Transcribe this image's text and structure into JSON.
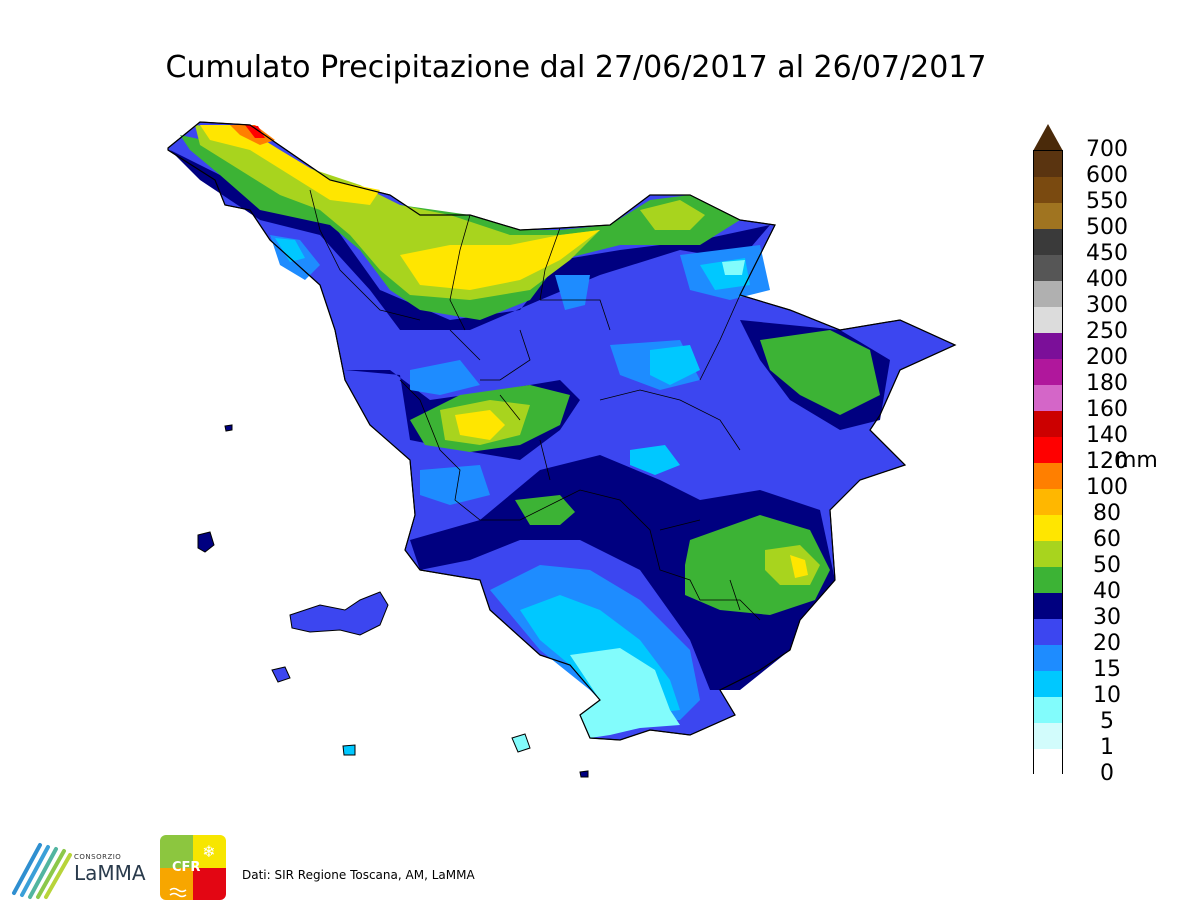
{
  "title": "Cumulato Precipitazione dal 27/06/2017 al 26/07/2017",
  "legend": {
    "unit": "mm",
    "levels": [
      {
        "label": "700",
        "color": "#5a3410"
      },
      {
        "label": "600",
        "color": "#7a4a10"
      },
      {
        "label": "550",
        "color": "#a07420"
      },
      {
        "label": "500",
        "color": "#3a3a3a"
      },
      {
        "label": "450",
        "color": "#565656"
      },
      {
        "label": "400",
        "color": "#b0b0b0"
      },
      {
        "label": "300",
        "color": "#dcdcdc"
      },
      {
        "label": "250",
        "color": "#7b0f99"
      },
      {
        "label": "200",
        "color": "#b0179c"
      },
      {
        "label": "180",
        "color": "#d466c8"
      },
      {
        "label": "160",
        "color": "#cc0000"
      },
      {
        "label": "140",
        "color": "#ff0000"
      },
      {
        "label": "120",
        "color": "#ff7f00"
      },
      {
        "label": "100",
        "color": "#ffb700"
      },
      {
        "label": "80",
        "color": "#ffe600"
      },
      {
        "label": "60",
        "color": "#a8d41e"
      },
      {
        "label": "50",
        "color": "#3cb335"
      },
      {
        "label": "40",
        "color": "#000080"
      },
      {
        "label": "30",
        "color": "#3c46f0"
      },
      {
        "label": "20",
        "color": "#1e8cff"
      },
      {
        "label": "15",
        "color": "#00c8ff"
      },
      {
        "label": "10",
        "color": "#82fcfc"
      },
      {
        "label": "5",
        "color": "#d2fcfc"
      },
      {
        "label": "1",
        "color": "#ffffff"
      },
      {
        "label": "0",
        "color": null
      }
    ]
  },
  "footer": {
    "source": "Dati: SIR Regione Toscana, AM, LaMMA",
    "lamma_small": "CONSORZIO",
    "lamma_big": "LaMMA",
    "cfr": "CFR"
  }
}
